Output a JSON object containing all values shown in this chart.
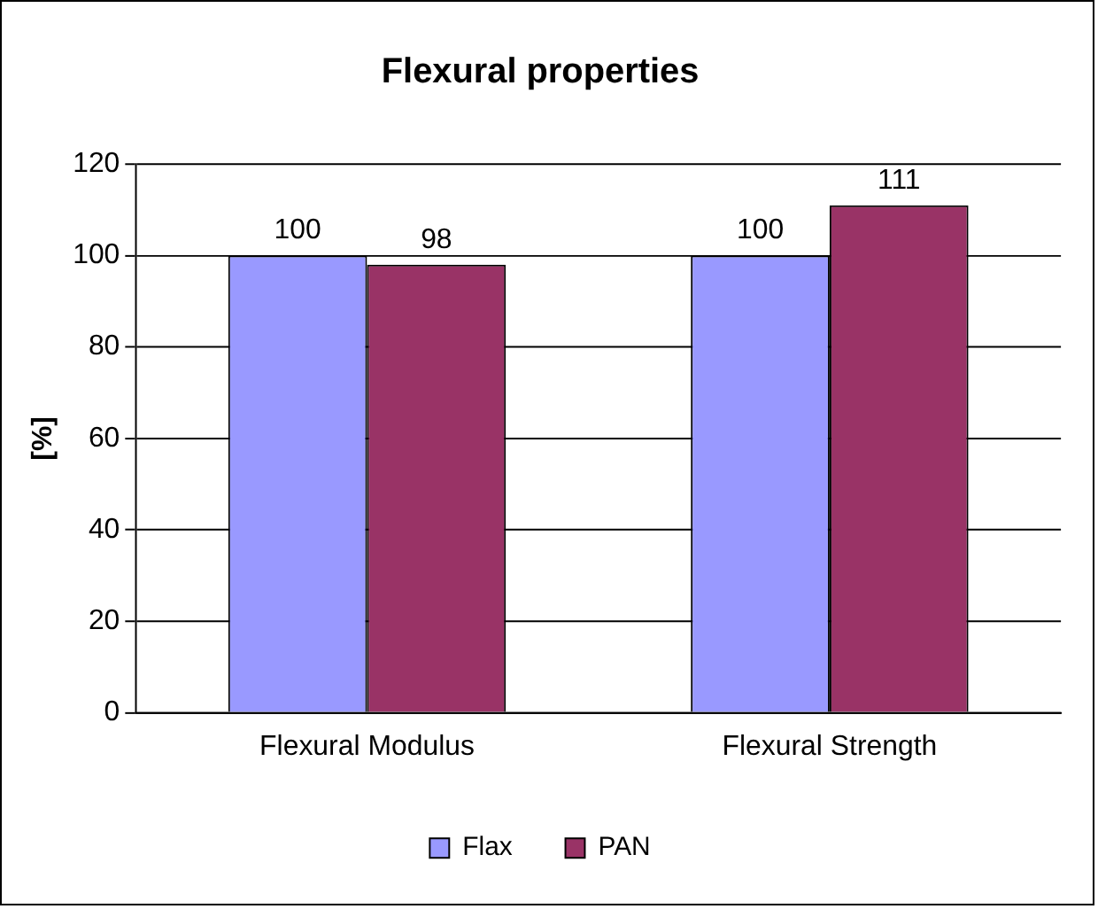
{
  "chart_data": {
    "type": "bar",
    "title": "Flexural properties",
    "ylabel": "[%]",
    "categories": [
      "Flexural Modulus",
      "Flexural Strength"
    ],
    "series": [
      {
        "name": "Flax",
        "color": "#9999ff",
        "values": [
          100,
          100
        ]
      },
      {
        "name": "PAN",
        "color": "#993366",
        "values": [
          98,
          111
        ]
      }
    ],
    "ylim": [
      0,
      120
    ],
    "yticks": [
      0,
      20,
      40,
      60,
      80,
      100,
      120
    ],
    "grid": "y",
    "legend": "bottom",
    "data_labels": true
  }
}
